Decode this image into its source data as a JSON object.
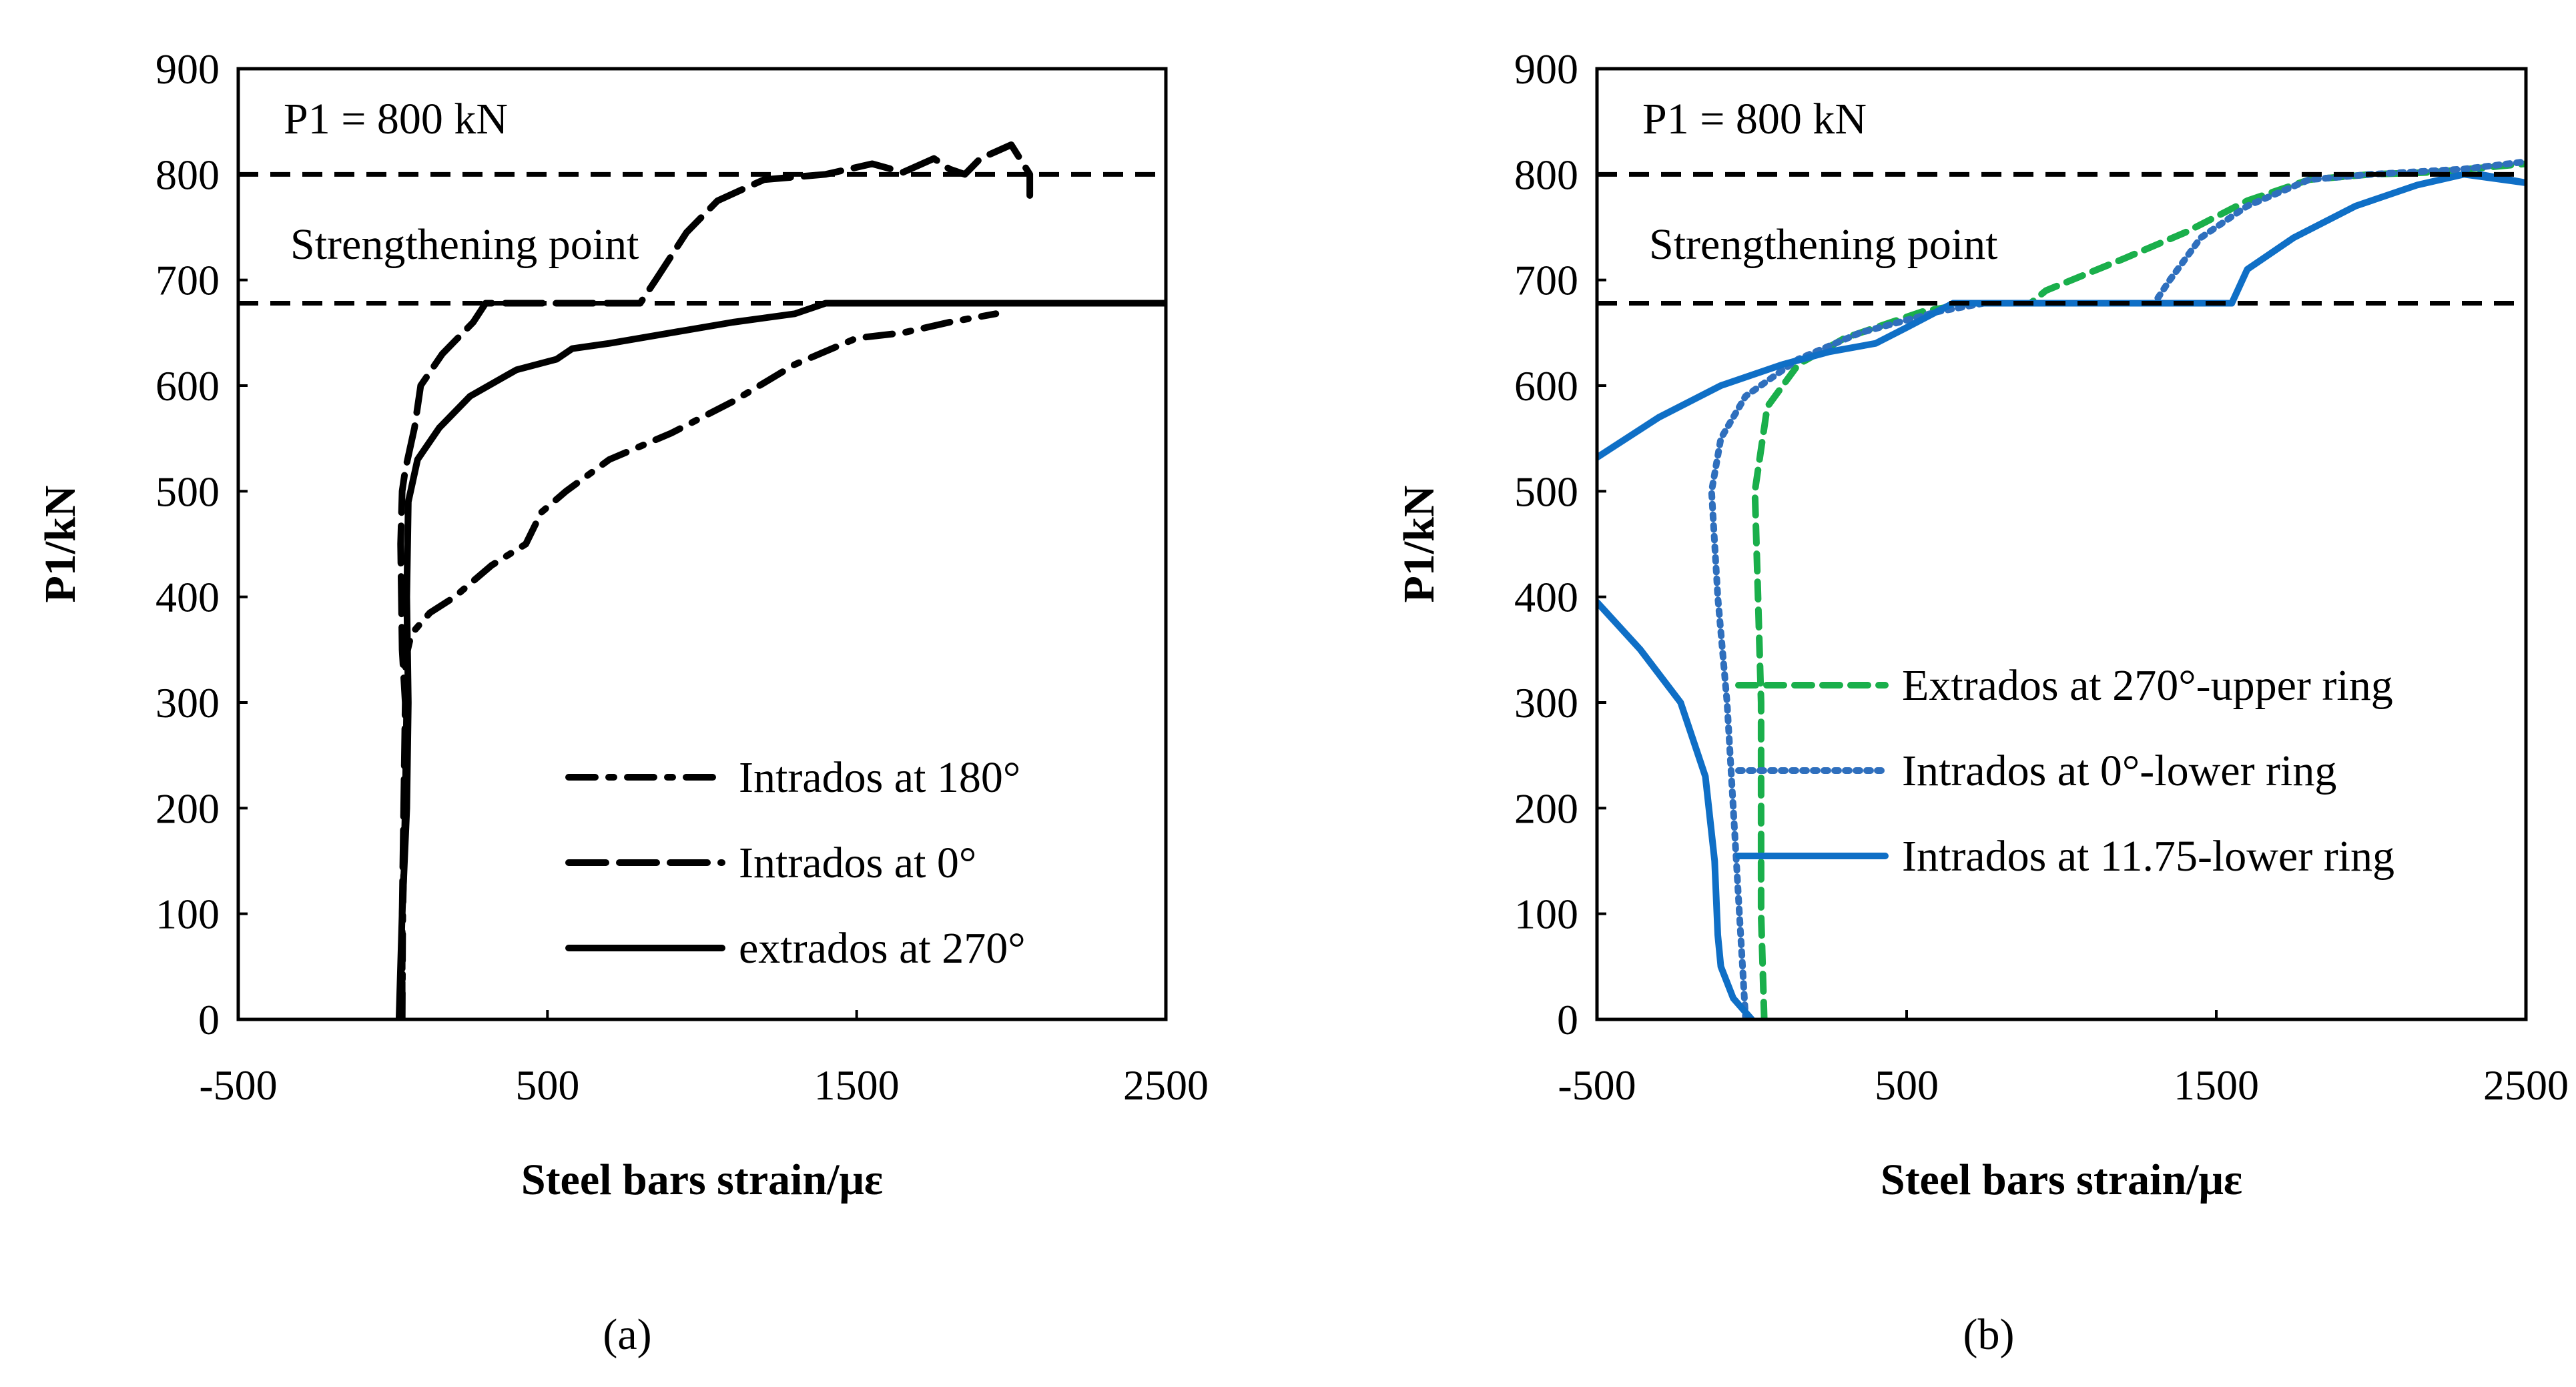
{
  "chart_data": [
    {
      "type": "line",
      "panel": "(a)",
      "xlabel": "Steel bars strain/με",
      "ylabel": "P1/kN",
      "xlim": [
        -500,
        2500
      ],
      "ylim": [
        0,
        900
      ],
      "xticks": [
        -500,
        500,
        1500,
        2500
      ],
      "yticks": [
        0,
        100,
        200,
        300,
        400,
        500,
        600,
        700,
        800,
        900
      ],
      "annotations": [
        "P1 = 800 kN",
        "Strengthening point"
      ],
      "reference_lines": [
        {
          "label": "P1 = 800 kN",
          "y": 800
        },
        {
          "label": "Strengthening point",
          "y": 678
        }
      ],
      "legend_position": "bottom-right",
      "series": [
        {
          "name": "Intrados at 180°",
          "dash": "dash-dot",
          "color": "#000000",
          "points": [
            [
              30,
              0
            ],
            [
              32,
              100
            ],
            [
              40,
              200
            ],
            [
              45,
              300
            ],
            [
              40,
              340
            ],
            [
              60,
              365
            ],
            [
              120,
              385
            ],
            [
              200,
              400
            ],
            [
              320,
              430
            ],
            [
              430,
              450
            ],
            [
              480,
              480
            ],
            [
              560,
              500
            ],
            [
              700,
              530
            ],
            [
              900,
              555
            ],
            [
              1100,
              585
            ],
            [
              1300,
              620
            ],
            [
              1500,
              645
            ],
            [
              1650,
              650
            ],
            [
              1800,
              660
            ],
            [
              1950,
              668
            ]
          ]
        },
        {
          "name": "Intrados at 0°",
          "dash": "long-dash",
          "color": "#000000",
          "points": [
            [
              30,
              0
            ],
            [
              30,
              100
            ],
            [
              35,
              200
            ],
            [
              40,
              300
            ],
            [
              30,
              350
            ],
            [
              25,
              450
            ],
            [
              30,
              500
            ],
            [
              40,
              520
            ],
            [
              70,
              560
            ],
            [
              90,
              600
            ],
            [
              160,
              630
            ],
            [
              260,
              660
            ],
            [
              300,
              678
            ],
            [
              500,
              678
            ],
            [
              800,
              678
            ],
            [
              850,
              700
            ],
            [
              950,
              745
            ],
            [
              1050,
              775
            ],
            [
              1200,
              795
            ],
            [
              1400,
              800
            ],
            [
              1550,
              810
            ],
            [
              1650,
              802
            ],
            [
              1750,
              815
            ],
            [
              1800,
              805
            ],
            [
              1850,
              800
            ],
            [
              1900,
              815
            ],
            [
              2000,
              828
            ],
            [
              2060,
              800
            ],
            [
              2060,
              780
            ]
          ]
        },
        {
          "name": "extrados at 270°",
          "dash": "solid",
          "color": "#000000",
          "points": [
            [
              20,
              0
            ],
            [
              30,
              100
            ],
            [
              45,
              200
            ],
            [
              50,
              300
            ],
            [
              45,
              400
            ],
            [
              50,
              490
            ],
            [
              80,
              530
            ],
            [
              150,
              560
            ],
            [
              250,
              590
            ],
            [
              400,
              615
            ],
            [
              530,
              625
            ],
            [
              580,
              635
            ],
            [
              700,
              640
            ],
            [
              900,
              650
            ],
            [
              1100,
              660
            ],
            [
              1300,
              668
            ],
            [
              1400,
              678
            ],
            [
              1700,
              678
            ],
            [
              2000,
              678
            ],
            [
              2500,
              678
            ]
          ]
        }
      ]
    },
    {
      "type": "line",
      "panel": "(b)",
      "xlabel": "Steel bars strain/με",
      "ylabel": "P1/kN",
      "xlim": [
        -500,
        2500
      ],
      "ylim": [
        0,
        900
      ],
      "xticks": [
        -500,
        500,
        1500,
        2500
      ],
      "yticks": [
        0,
        100,
        200,
        300,
        400,
        500,
        600,
        700,
        800,
        900
      ],
      "annotations": [
        "P1 = 800 kN",
        "Strengthening point"
      ],
      "reference_lines": [
        {
          "label": "P1 = 800 kN",
          "y": 800
        },
        {
          "label": "Strengthening point",
          "y": 678
        }
      ],
      "legend_position": "center-right",
      "series": [
        {
          "name": "Extrados at 270°-upper ring",
          "dash": "dashed",
          "color": "#1aaf4b",
          "points": [
            [
              40,
              0
            ],
            [
              30,
              100
            ],
            [
              30,
              200
            ],
            [
              30,
              300
            ],
            [
              20,
              400
            ],
            [
              10,
              500
            ],
            [
              50,
              580
            ],
            [
              150,
              620
            ],
            [
              300,
              645
            ],
            [
              550,
              670
            ],
            [
              700,
              678
            ],
            [
              900,
              678
            ],
            [
              950,
              690
            ],
            [
              1200,
              720
            ],
            [
              1400,
              745
            ],
            [
              1600,
              775
            ],
            [
              1800,
              795
            ],
            [
              2000,
              800
            ],
            [
              2200,
              802
            ],
            [
              2500,
              810
            ]
          ]
        },
        {
          "name": "Intrados at 0°-lower ring",
          "dash": "dotted",
          "color": "#2f6fbd",
          "points": [
            [
              -20,
              0
            ],
            [
              -30,
              50
            ],
            [
              -40,
              100
            ],
            [
              -60,
              200
            ],
            [
              -80,
              300
            ],
            [
              -110,
              400
            ],
            [
              -130,
              500
            ],
            [
              -100,
              550
            ],
            [
              -20,
              590
            ],
            [
              150,
              625
            ],
            [
              350,
              650
            ],
            [
              600,
              670
            ],
            [
              750,
              678
            ],
            [
              1300,
              678
            ],
            [
              1350,
              700
            ],
            [
              1450,
              740
            ],
            [
              1600,
              770
            ],
            [
              1800,
              795
            ],
            [
              2000,
              800
            ],
            [
              2300,
              805
            ],
            [
              2500,
              812
            ]
          ]
        },
        {
          "name": "Intrados at 11.75-lower ring",
          "dash": "solid",
          "color": "#0f6fc6",
          "points": [
            [
              -500,
              532
            ],
            [
              -300,
              570
            ],
            [
              -100,
              600
            ],
            [
              100,
              620
            ],
            [
              250,
              632
            ],
            [
              400,
              640
            ],
            [
              500,
              655
            ],
            [
              650,
              678
            ],
            [
              1000,
              678
            ],
            [
              1550,
              678
            ],
            [
              1600,
              710
            ],
            [
              1750,
              740
            ],
            [
              1950,
              770
            ],
            [
              2150,
              790
            ],
            [
              2300,
              800
            ],
            [
              2500,
              792
            ],
            [
              2350,
              800
            ]
          ],
          "low_branch": [
            [
              0,
              0
            ],
            [
              -60,
              20
            ],
            [
              -100,
              50
            ],
            [
              -110,
              80
            ],
            [
              -120,
              150
            ],
            [
              -150,
              230
            ],
            [
              -230,
              300
            ],
            [
              -360,
              350
            ],
            [
              -500,
              395
            ]
          ]
        }
      ]
    }
  ]
}
